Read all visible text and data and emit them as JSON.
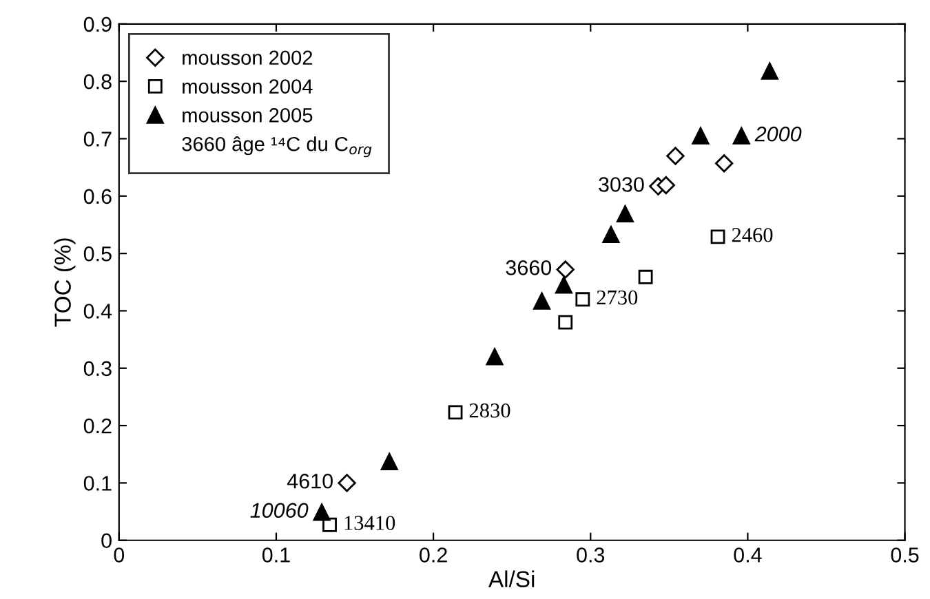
{
  "chart_data": {
    "type": "scatter",
    "xlabel": "Al/Si",
    "ylabel": "TOC (%)",
    "xlim": [
      0,
      0.5
    ],
    "xticks": [
      0,
      0.1,
      0.2,
      0.3,
      0.4,
      0.5
    ],
    "ylim": [
      0,
      0.9
    ],
    "yticks": [
      0,
      0.1,
      0.2,
      0.3,
      0.4,
      0.5,
      0.6,
      0.7,
      0.8,
      0.9
    ],
    "grid": false,
    "legend": "top left",
    "series": [
      {
        "name": "mousson 2002",
        "color": "#000000",
        "marker": "diamond",
        "x": [
          0.354,
          0.385,
          0.343,
          0.348,
          0.284,
          0.145
        ],
        "values": [
          0.67,
          0.657,
          0.617,
          0.619,
          0.472,
          0.1
        ]
      },
      {
        "name": "mousson 2004",
        "color": "#000000",
        "marker": "square",
        "x": [
          0.381,
          0.335,
          0.295,
          0.284,
          0.214,
          0.134
        ],
        "values": [
          0.529,
          0.459,
          0.42,
          0.38,
          0.223,
          0.027
        ]
      },
      {
        "name": "mousson 2005",
        "color": "#000000",
        "marker": "triangle",
        "x": [
          0.414,
          0.37,
          0.396,
          0.322,
          0.313,
          0.283,
          0.269,
          0.239,
          0.172,
          0.129
        ],
        "values": [
          0.818,
          0.705,
          0.705,
          0.569,
          0.533,
          0.445,
          0.417,
          0.32,
          0.137,
          0.049
        ]
      }
    ],
    "annotations": [
      "3660 âge ¹⁴C du C$_{org}$",
      {
        "text": "3030",
        "x": 0.343,
        "y": 0.617
      },
      {
        "text": "3660",
        "x": 0.284,
        "y": 0.472
      },
      {
        "text": "4610",
        "x": 0.145,
        "y": 0.1
      },
      {
        "text": "2460",
        "x": 0.381,
        "y": 0.529
      },
      {
        "text": "2730",
        "x": 0.295,
        "y": 0.42
      },
      {
        "text": "2830",
        "x": 0.214,
        "y": 0.223
      },
      {
        "text": "13410",
        "x": 0.134,
        "y": 0.027
      },
      {
        "text": "2000",
        "x": 0.396,
        "y": 0.705
      },
      {
        "text": "10060",
        "x": 0.129,
        "y": 0.049
      }
    ]
  }
}
